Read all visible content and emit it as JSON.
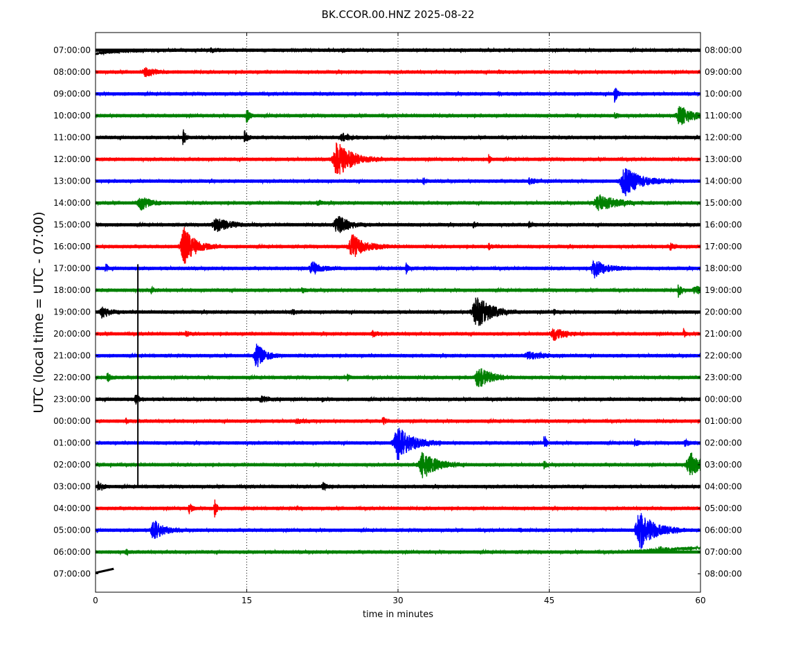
{
  "chart_data": {
    "type": "line",
    "title": "BK.CCOR.00.HNZ 2025-08-22",
    "xlabel": "time in minutes",
    "ylabel": "UTC (local time = UTC - 07:00)",
    "xlim": [
      0,
      60
    ],
    "xticks": [
      0,
      15,
      30,
      45,
      60
    ],
    "vgrid_at": [
      15,
      30,
      45
    ],
    "grid": "vertical dotted",
    "trace_colors": [
      "#000000",
      "#ff0000",
      "#0000ff",
      "#008000"
    ],
    "left_labels": [
      "07:00:00",
      "08:00:00",
      "09:00:00",
      "10:00:00",
      "11:00:00",
      "12:00:00",
      "13:00:00",
      "14:00:00",
      "15:00:00",
      "16:00:00",
      "17:00:00",
      "18:00:00",
      "19:00:00",
      "20:00:00",
      "21:00:00",
      "22:00:00",
      "23:00:00",
      "00:00:00",
      "01:00:00",
      "02:00:00",
      "03:00:00",
      "04:00:00",
      "05:00:00",
      "06:00:00",
      "07:00:00"
    ],
    "right_labels": [
      "08:00:00",
      "09:00:00",
      "10:00:00",
      "11:00:00",
      "12:00:00",
      "13:00:00",
      "14:00:00",
      "15:00:00",
      "16:00:00",
      "17:00:00",
      "18:00:00",
      "19:00:00",
      "20:00:00",
      "21:00:00",
      "22:00:00",
      "23:00:00",
      "00:00:00",
      "01:00:00",
      "02:00:00",
      "03:00:00",
      "04:00:00",
      "05:00:00",
      "06:00:00",
      "07:00:00",
      "08:00:00"
    ],
    "series": [
      {
        "events": [
          [
            11.5,
            0.15,
            0.6
          ],
          [
            24.5,
            0.12,
            0.5
          ]
        ]
      },
      {
        "events": [
          [
            5,
            0.35,
            1.0
          ],
          [
            40,
            0.15,
            0.4
          ]
        ]
      },
      {
        "events": [
          [
            51.5,
            0.8,
            0.3
          ],
          [
            40,
            0.1,
            0.4
          ]
        ]
      },
      {
        "events": [
          [
            15,
            0.6,
            0.3
          ],
          [
            58,
            0.9,
            1.2
          ],
          [
            51.5,
            0.2,
            0.3
          ]
        ]
      },
      {
        "events": [
          [
            8.7,
            1.0,
            0.2
          ],
          [
            14.8,
            0.8,
            0.25
          ],
          [
            24.5,
            0.3,
            1.0
          ]
        ]
      },
      {
        "events": [
          [
            24,
            1.6,
            1.5
          ],
          [
            39,
            0.4,
            0.2
          ]
        ]
      },
      {
        "events": [
          [
            52.5,
            1.3,
            1.6
          ],
          [
            43,
            0.3,
            0.5
          ],
          [
            32.5,
            0.4,
            0.2
          ]
        ]
      },
      {
        "events": [
          [
            4.5,
            0.6,
            1.0
          ],
          [
            50,
            0.7,
            1.8
          ],
          [
            22,
            0.2,
            0.3
          ]
        ]
      },
      {
        "events": [
          [
            12,
            0.6,
            1.4
          ],
          [
            24,
            0.9,
            1.1
          ],
          [
            37.5,
            0.2,
            0.3
          ],
          [
            43,
            0.2,
            0.3
          ]
        ]
      },
      {
        "events": [
          [
            8.8,
            1.7,
            1.2
          ],
          [
            25.5,
            1.0,
            1.4
          ],
          [
            39,
            0.25,
            0.3
          ],
          [
            57,
            0.25,
            0.4
          ]
        ]
      },
      {
        "events": [
          [
            1.0,
            0.5,
            0.2
          ],
          [
            21.5,
            0.6,
            1.0
          ],
          [
            30.8,
            0.5,
            0.2
          ],
          [
            49.5,
            0.8,
            1.2
          ]
        ]
      },
      {
        "events": [
          [
            5.5,
            0.3,
            0.3
          ],
          [
            20.5,
            0.2,
            0.3
          ],
          [
            57.8,
            0.6,
            0.3
          ],
          [
            59.5,
            0.4,
            0.8
          ]
        ]
      },
      {
        "events": [
          [
            0.7,
            0.5,
            0.8
          ],
          [
            37.8,
            1.5,
            1.5
          ],
          [
            19.5,
            0.3,
            0.3
          ],
          [
            45.5,
            0.2,
            0.4
          ]
        ]
      },
      {
        "events": [
          [
            45.5,
            0.55,
            1.0
          ],
          [
            27.5,
            0.2,
            0.5
          ],
          [
            9,
            0.2,
            0.3
          ],
          [
            58.3,
            0.6,
            0.15
          ]
        ]
      },
      {
        "events": [
          [
            16,
            1.1,
            0.9
          ],
          [
            43,
            0.3,
            1.4
          ]
        ]
      },
      {
        "events": [
          [
            1.2,
            0.5,
            0.3
          ],
          [
            38,
            1.0,
            1.2
          ],
          [
            25,
            0.2,
            0.3
          ]
        ]
      },
      {
        "events": [
          [
            4.0,
            0.4,
            0.4
          ],
          [
            16.5,
            0.3,
            0.8
          ],
          [
            22.5,
            0.2,
            0.2
          ],
          [
            54,
            0.15,
            0.2
          ]
        ]
      },
      {
        "events": [
          [
            3.0,
            0.2,
            0.2
          ],
          [
            20,
            0.15,
            0.8
          ],
          [
            28.5,
            0.45,
            0.3
          ]
        ]
      },
      {
        "events": [
          [
            30,
            1.5,
            1.5
          ],
          [
            44.5,
            0.9,
            0.2
          ],
          [
            53.5,
            0.4,
            0.3
          ],
          [
            58.5,
            0.3,
            0.4
          ]
        ]
      },
      {
        "events": [
          [
            32.5,
            1.2,
            1.4
          ],
          [
            59,
            1.1,
            1.3
          ],
          [
            44.5,
            0.4,
            0.2
          ],
          [
            1.5,
            0.15,
            0.2
          ]
        ]
      },
      {
        "events": [
          [
            0.3,
            0.5,
            0.4
          ],
          [
            22.5,
            0.5,
            0.3
          ]
        ]
      },
      {
        "events": [
          [
            9.3,
            0.5,
            0.3
          ],
          [
            11.8,
            0.9,
            0.25
          ],
          [
            20,
            0.1,
            0.4
          ]
        ]
      },
      {
        "events": [
          [
            5.8,
            0.9,
            1.0
          ],
          [
            54,
            1.8,
            1.5
          ],
          [
            42,
            0.15,
            0.4
          ]
        ]
      },
      {
        "events": [
          [
            3,
            0.3,
            0.2
          ],
          [
            56,
            0.2,
            1.0
          ]
        ]
      },
      {
        "events": []
      }
    ],
    "vertical_spike": {
      "minute": 4.2,
      "from_row": 10,
      "to_row": 20
    }
  }
}
